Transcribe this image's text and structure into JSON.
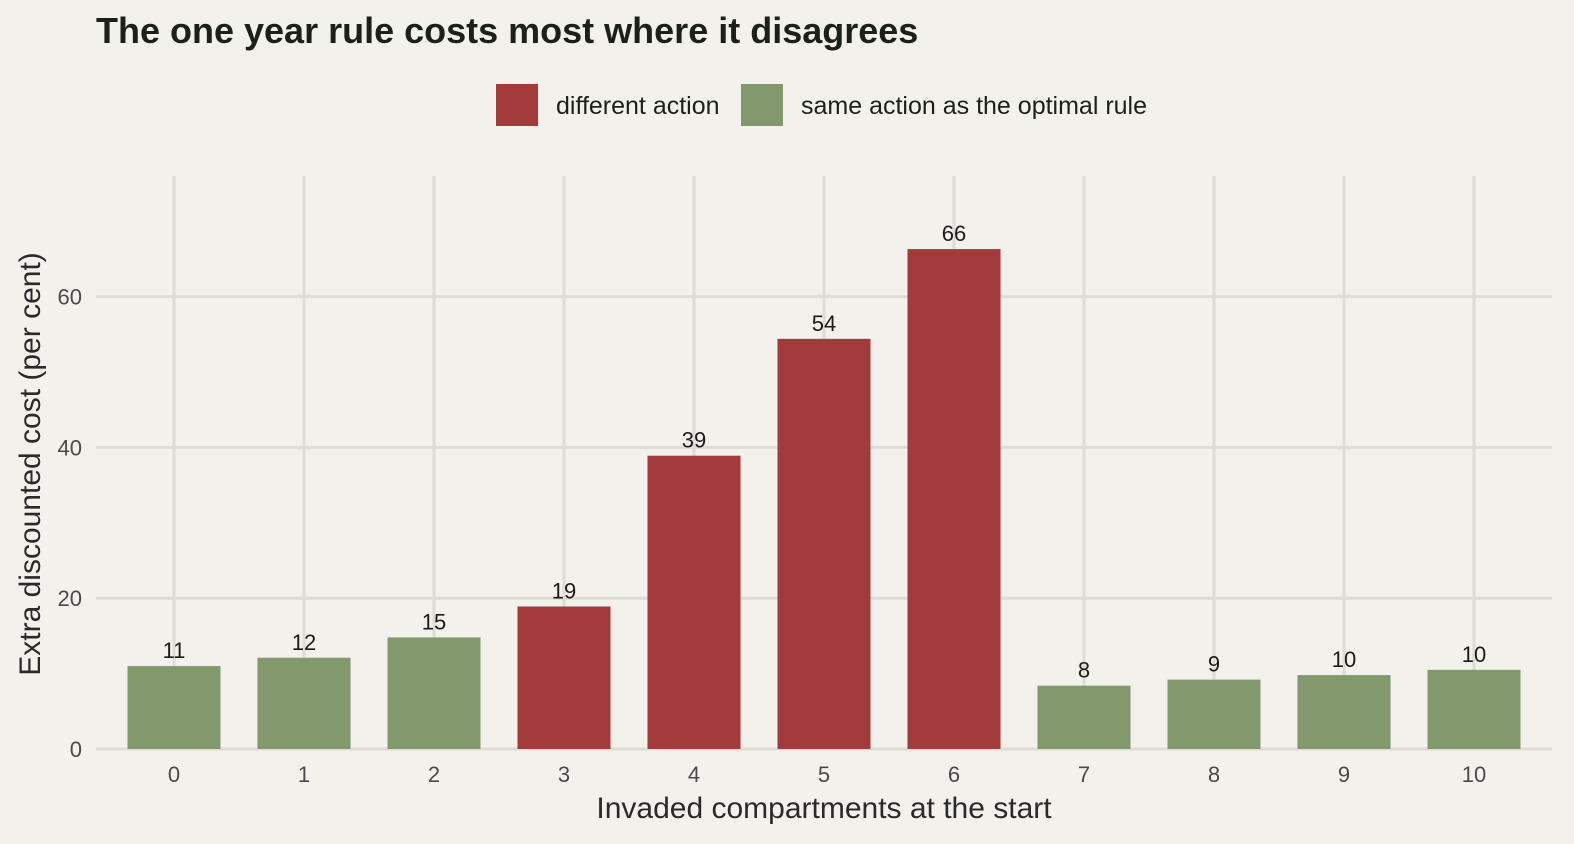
{
  "chart_data": {
    "type": "bar",
    "title": "The one year rule costs most where it disagrees",
    "xlabel": "Invaded compartments at the start",
    "ylabel": "Extra discounted cost (per cent)",
    "categories": [
      "0",
      "1",
      "2",
      "3",
      "4",
      "5",
      "6",
      "7",
      "8",
      "9",
      "10"
    ],
    "values": [
      11,
      12,
      15,
      19,
      39,
      54,
      66,
      8,
      9,
      10,
      10
    ],
    "raw_values": [
      11.0,
      12.1,
      14.8,
      18.9,
      38.9,
      54.4,
      66.3,
      8.4,
      9.2,
      9.8,
      10.5
    ],
    "groups": [
      "same",
      "same",
      "same",
      "different",
      "different",
      "different",
      "different",
      "same",
      "same",
      "same",
      "same"
    ],
    "legend": [
      {
        "key": "different",
        "label": "different action",
        "color": "#a33b3c"
      },
      {
        "key": "same",
        "label": "same action as the optimal rule",
        "color": "#83986c"
      }
    ],
    "legend_position": "top",
    "ylim": [
      0,
      76
    ],
    "yticks": [
      0,
      20,
      40,
      60
    ],
    "grid": true
  }
}
